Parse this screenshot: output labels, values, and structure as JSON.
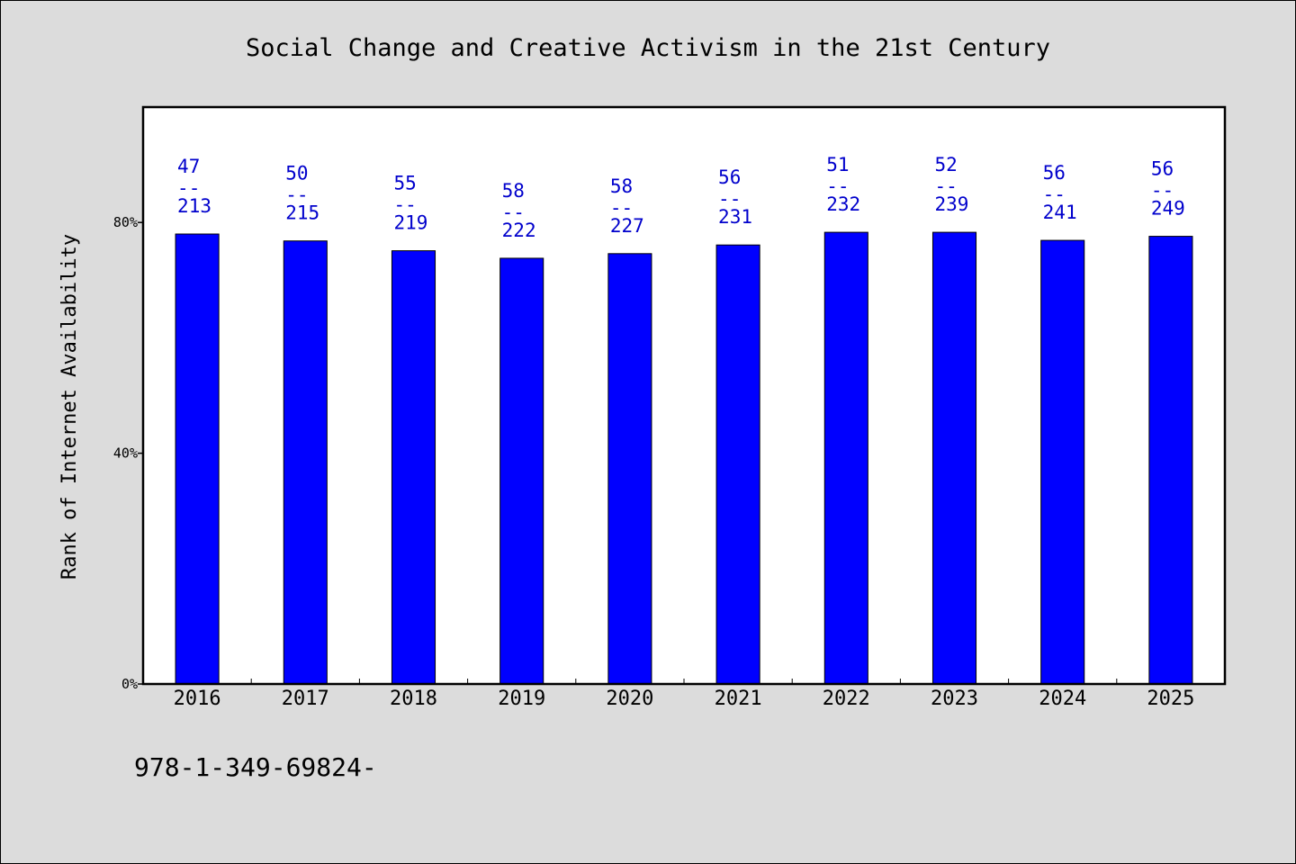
{
  "chart_data": {
    "type": "bar",
    "title": "Social Change and Creative Activism in the 21st Century",
    "ylabel": "Rank of Internet Availability",
    "xlabel": "",
    "categories": [
      "2016",
      "2017",
      "2018",
      "2019",
      "2020",
      "2021",
      "2022",
      "2023",
      "2024",
      "2025"
    ],
    "values": [
      78.0,
      76.8,
      75.1,
      73.8,
      74.6,
      76.1,
      78.3,
      78.3,
      76.9,
      77.6
    ],
    "annotations": [
      {
        "top": "47",
        "sep": "--",
        "bottom": "213"
      },
      {
        "top": "50",
        "sep": "--",
        "bottom": "215"
      },
      {
        "top": "55",
        "sep": "--",
        "bottom": "219"
      },
      {
        "top": "58",
        "sep": "--",
        "bottom": "222"
      },
      {
        "top": "58",
        "sep": "--",
        "bottom": "227"
      },
      {
        "top": "56",
        "sep": "--",
        "bottom": "231"
      },
      {
        "top": "51",
        "sep": "--",
        "bottom": "232"
      },
      {
        "top": "52",
        "sep": "--",
        "bottom": "239"
      },
      {
        "top": "56",
        "sep": "--",
        "bottom": "241"
      },
      {
        "top": "56",
        "sep": "--",
        "bottom": "249"
      }
    ],
    "ylim": [
      0,
      100
    ],
    "yticks": [
      0,
      40,
      80
    ],
    "ytick_labels": [
      "0%",
      "40%",
      "80%"
    ],
    "grid": false,
    "colors": {
      "bar": "#0000ff",
      "bar_edge": "#000000",
      "data_label": "#0000cc",
      "plot_background": "#ffffff",
      "figure_background": "#dcdcdc"
    }
  },
  "footer": {
    "text": "978-1-349-69824-"
  }
}
